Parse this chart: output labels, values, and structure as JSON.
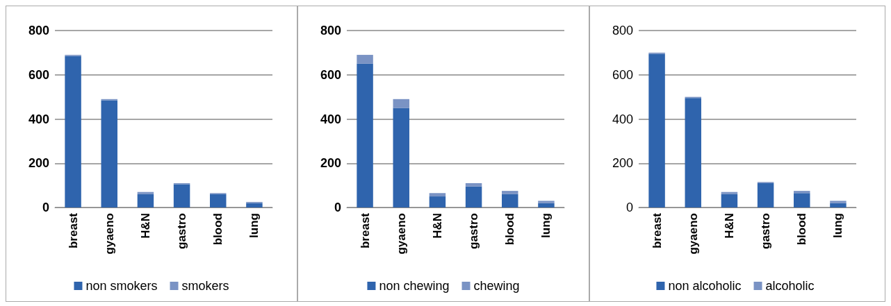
{
  "chart_data": [
    {
      "type": "bar",
      "stacked": true,
      "categories": [
        "breast",
        "gyaeno",
        "H&N",
        "gastro",
        "blood",
        "lung"
      ],
      "series": [
        {
          "name": "non smokers",
          "color": "#2f64ad",
          "values": [
            685,
            485,
            60,
            105,
            60,
            20
          ]
        },
        {
          "name": "smokers",
          "color": "#7a93c4",
          "values": [
            5,
            5,
            10,
            5,
            5,
            5
          ]
        }
      ],
      "ylim": [
        0,
        800
      ],
      "yticks": [
        0,
        200,
        400,
        600,
        800
      ],
      "grid": "y",
      "legend": "bottom"
    },
    {
      "type": "bar",
      "stacked": true,
      "categories": [
        "breast",
        "gyaeno",
        "H&N",
        "gastro",
        "blood",
        "lung"
      ],
      "series": [
        {
          "name": "non chewing",
          "color": "#2f64ad",
          "values": [
            650,
            450,
            50,
            95,
            60,
            20
          ]
        },
        {
          "name": "chewing",
          "color": "#7a93c4",
          "values": [
            40,
            40,
            15,
            15,
            15,
            10
          ]
        }
      ],
      "ylim": [
        0,
        800
      ],
      "yticks": [
        0,
        200,
        400,
        600,
        800
      ],
      "grid": "y",
      "legend": "bottom"
    },
    {
      "type": "bar",
      "stacked": true,
      "categories": [
        "breast",
        "gyaeno",
        "H&N",
        "gastro",
        "blood",
        "lung"
      ],
      "series": [
        {
          "name": "non alcoholic",
          "color": "#2f64ad",
          "values": [
            695,
            495,
            60,
            110,
            65,
            20
          ]
        },
        {
          "name": "alcoholic",
          "color": "#7a93c4",
          "values": [
            5,
            5,
            10,
            5,
            10,
            10
          ]
        }
      ],
      "ylim": [
        0,
        800
      ],
      "yticks": [
        0,
        200,
        400,
        600,
        800
      ],
      "grid": "y",
      "legend": "bottom"
    }
  ]
}
